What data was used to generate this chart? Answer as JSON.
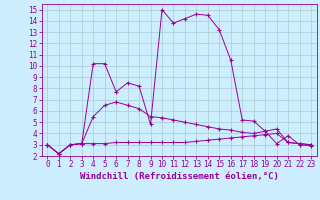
{
  "background_color": "#cceeff",
  "line_color": "#990099",
  "grid_color": "#aacccc",
  "xlabel": "Windchill (Refroidissement éolien,°C)",
  "xlim": [
    -0.5,
    23.5
  ],
  "ylim": [
    2,
    15.5
  ],
  "xticks": [
    0,
    1,
    2,
    3,
    4,
    5,
    6,
    7,
    8,
    9,
    10,
    11,
    12,
    13,
    14,
    15,
    16,
    17,
    18,
    19,
    20,
    21,
    22,
    23
  ],
  "yticks": [
    2,
    3,
    4,
    5,
    6,
    7,
    8,
    9,
    10,
    11,
    12,
    13,
    14,
    15
  ],
  "line1_x": [
    0,
    1,
    2,
    3,
    4,
    5,
    6,
    7,
    8,
    9,
    10,
    11,
    12,
    13,
    14,
    15,
    16,
    17,
    18,
    19,
    20,
    21,
    22,
    23
  ],
  "line1_y": [
    3.0,
    2.2,
    3.0,
    3.1,
    10.2,
    10.2,
    7.7,
    8.5,
    8.2,
    4.8,
    15.0,
    13.8,
    14.2,
    14.6,
    14.5,
    13.2,
    10.5,
    5.2,
    5.1,
    4.2,
    3.1,
    3.8,
    3.0,
    2.9
  ],
  "line2_x": [
    0,
    1,
    2,
    3,
    4,
    5,
    6,
    7,
    8,
    9,
    10,
    11,
    12,
    13,
    14,
    15,
    16,
    17,
    18,
    19,
    20,
    21,
    22,
    23
  ],
  "line2_y": [
    3.0,
    2.2,
    3.0,
    3.1,
    5.5,
    6.5,
    6.8,
    6.5,
    6.2,
    5.5,
    5.4,
    5.2,
    5.0,
    4.8,
    4.6,
    4.4,
    4.3,
    4.1,
    4.0,
    4.2,
    4.4,
    3.2,
    3.1,
    3.0
  ],
  "line3_x": [
    0,
    1,
    2,
    3,
    4,
    5,
    6,
    7,
    8,
    9,
    10,
    11,
    12,
    13,
    14,
    15,
    16,
    17,
    18,
    19,
    20,
    21,
    22,
    23
  ],
  "line3_y": [
    3.0,
    2.2,
    3.0,
    3.1,
    3.1,
    3.1,
    3.2,
    3.2,
    3.2,
    3.2,
    3.2,
    3.2,
    3.2,
    3.3,
    3.4,
    3.5,
    3.6,
    3.7,
    3.8,
    3.9,
    4.0,
    3.2,
    3.1,
    3.0
  ],
  "tick_fontsize": 5.5,
  "label_fontsize": 6.5
}
